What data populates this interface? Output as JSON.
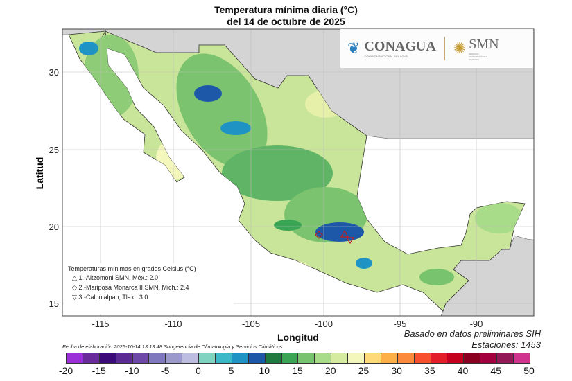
{
  "title": {
    "line1": "Temperatura mínima diaria (°C)",
    "line2": "del 14 de octubre de 2025"
  },
  "axes": {
    "xlabel": "Longitud",
    "ylabel": "Latitud",
    "xticks": [
      "-115",
      "-110",
      "-105",
      "-100",
      "-95",
      "-90"
    ],
    "yticks": [
      "30",
      "25",
      "20",
      "15"
    ]
  },
  "logos": {
    "conagua": "CONAGUA",
    "conagua_sub": "COMISIÓN NACIONAL DEL AGUA",
    "smn": "SMN",
    "smn_sub": "SERVICIO METEOROLÓGICO NACIONAL"
  },
  "legend": {
    "title": "Temperaturas mínimas en grados Celsius (°C)",
    "items": [
      {
        "symbol": "△",
        "text": "1.-Altzomoni SMN, Méx.: 2.0"
      },
      {
        "symbol": "◇",
        "text": "2.-Mariposa Monarca II SMN, Mich.: 2.4"
      },
      {
        "symbol": "▽",
        "text": "3.-Calpulalpan, Tlax.: 3.0"
      }
    ]
  },
  "notes": {
    "source": "Basado en datos preliminares SIH",
    "stations": "Estaciones:  1453",
    "footer": "Fecha de elaboración 2025-10-14 13:13:48 Subgerencia de Climatología y Servicios Climáticos"
  },
  "colorbar": {
    "labels": [
      "-20",
      "-15",
      "-10",
      "-5",
      "0",
      "5",
      "10",
      "15",
      "20",
      "25",
      "30",
      "35",
      "40",
      "45",
      "50"
    ],
    "colors": [
      "#9b30d8",
      "#6a2a9a",
      "#3d0a7a",
      "#5b2a92",
      "#6e48a8",
      "#7f78be",
      "#9b98cc",
      "#bcbde0",
      "#7fd3c0",
      "#3cb8c8",
      "#1f93c4",
      "#1d58a8",
      "#1e7a3e",
      "#3aa655",
      "#78c46e",
      "#a8dc88",
      "#d4eba0",
      "#f4f7bc",
      "#fedb78",
      "#fdb048",
      "#fb8a3c",
      "#f8502f",
      "#e41e26",
      "#c5001f",
      "#8b0020",
      "#a3003f",
      "#921858",
      "#d0338e"
    ]
  }
}
